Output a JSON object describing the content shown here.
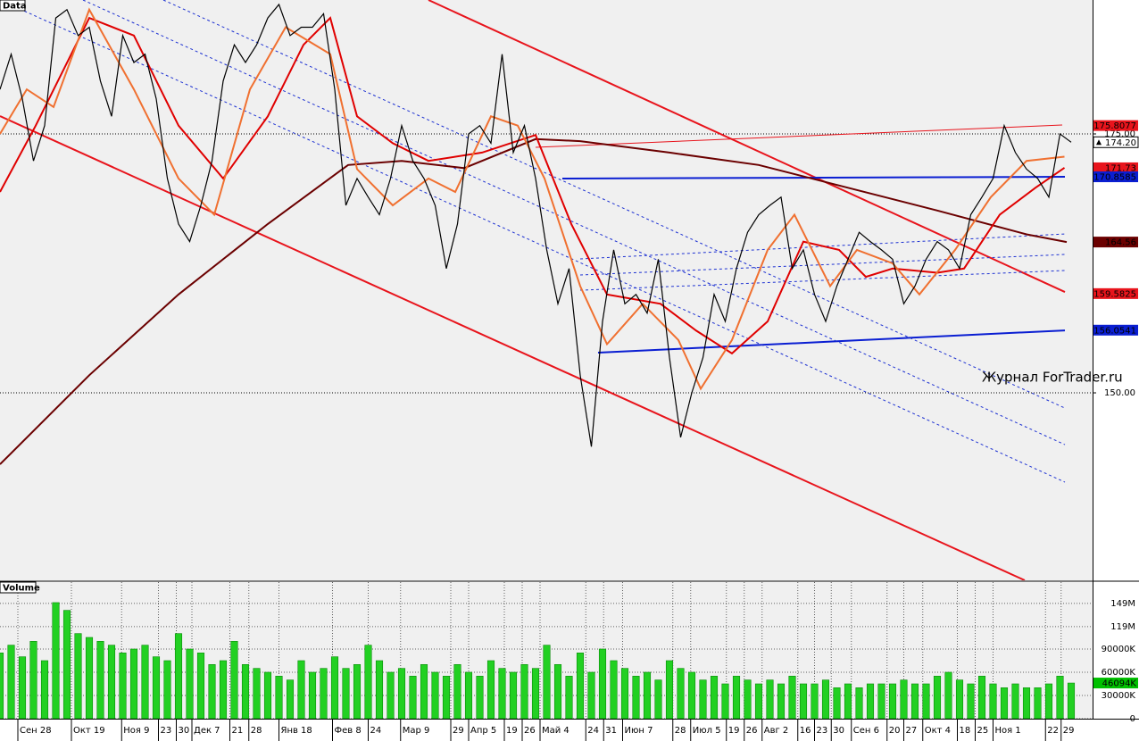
{
  "chart_data": [
    {
      "type": "line",
      "label": "Data",
      "watermark": "Журнал ForTrader.ru",
      "color": "#000000",
      "xlim": [
        0,
        97.92
      ],
      "ylim": [
        131.9,
        187.93
      ],
      "yticks": [
        {
          "value": 150,
          "label": "150.00"
        },
        {
          "value": 175,
          "label": "175.00"
        }
      ],
      "xticks": [
        {
          "value": 1.6,
          "label": "Сен 28"
        },
        {
          "value": 6.4,
          "label": "Окт 19"
        },
        {
          "value": 10.9,
          "label": "Ноя 9"
        },
        {
          "value": 14.2,
          "label": "23"
        },
        {
          "value": 15.8,
          "label": "30"
        },
        {
          "value": 17.2,
          "label": "Дек 7"
        },
        {
          "value": 20.6,
          "label": "21"
        },
        {
          "value": 22.3,
          "label": "28"
        },
        {
          "value": 25.0,
          "label": "Янв 18"
        },
        {
          "value": 29.8,
          "label": "Фев 8"
        },
        {
          "value": 33.0,
          "label": "24"
        },
        {
          "value": 35.9,
          "label": "Мар 9"
        },
        {
          "value": 40.4,
          "label": "29"
        },
        {
          "value": 42.0,
          "label": "Апр 5"
        },
        {
          "value": 45.2,
          "label": "19"
        },
        {
          "value": 46.8,
          "label": "26"
        },
        {
          "value": 48.4,
          "label": "Май 4"
        },
        {
          "value": 52.5,
          "label": "24"
        },
        {
          "value": 54.1,
          "label": "31"
        },
        {
          "value": 55.8,
          "label": "Июн 7"
        },
        {
          "value": 60.3,
          "label": "28"
        },
        {
          "value": 61.9,
          "label": "Июл 5"
        },
        {
          "value": 65.1,
          "label": "19"
        },
        {
          "value": 66.7,
          "label": "26"
        },
        {
          "value": 68.3,
          "label": "Авг 2"
        },
        {
          "value": 71.5,
          "label": "16"
        },
        {
          "value": 73.0,
          "label": "23"
        },
        {
          "value": 74.5,
          "label": "30"
        },
        {
          "value": 76.3,
          "label": "Сен 6"
        },
        {
          "value": 79.5,
          "label": "20"
        },
        {
          "value": 81.0,
          "label": "27"
        },
        {
          "value": 82.7,
          "label": "Окт 4"
        },
        {
          "value": 85.8,
          "label": "18"
        },
        {
          "value": 87.4,
          "label": "25"
        },
        {
          "value": 89.0,
          "label": "Ноя 1"
        },
        {
          "value": 93.7,
          "label": "22"
        },
        {
          "value": 95.1,
          "label": "29"
        }
      ],
      "values": [
        179.3,
        182.7,
        178.4,
        172.4,
        175.8,
        186.2,
        187,
        184.5,
        185.3,
        180.1,
        176.7,
        184.5,
        181.9,
        182.7,
        178.4,
        170.7,
        166.3,
        164.6,
        168.1,
        172.4,
        180.1,
        183.6,
        181.9,
        183.6,
        186.2,
        187.5,
        184.5,
        185.3,
        185.3,
        186.6,
        179.3,
        168.1,
        170.7,
        168.9,
        167.2,
        170.7,
        175.8,
        172.4,
        170.7,
        168.1,
        162.0,
        166.3,
        175.0,
        175.8,
        174.1,
        182.7,
        173.2,
        175.8,
        170.7,
        163.8,
        158.6,
        162.0,
        151.7,
        144.8,
        156.9,
        163.8,
        158.6,
        159.5,
        157.7,
        162.9,
        153.4,
        145.7,
        150.0,
        153.4,
        159.5,
        156.9,
        162.0,
        165.5,
        167.2,
        168.1,
        168.9,
        162.0,
        163.8,
        159.5,
        156.9,
        160.3,
        162.9,
        165.5,
        164.6,
        163.8,
        162.9,
        158.6,
        160.3,
        162.9,
        164.6,
        163.8,
        162.0,
        167.2,
        168.9,
        170.7,
        175.8,
        173.2,
        171.6,
        170.7,
        168.9,
        175.0,
        174.2
      ],
      "moving_averages": [
        {
          "color": "#6b0000",
          "x": [
            0,
            8,
            16,
            24,
            31.2,
            36,
            41.6,
            48,
            52,
            60,
            68,
            76,
            84,
            92,
            95.6
          ],
          "values": [
            143.1,
            151.7,
            159.5,
            166.3,
            172.0,
            172.4,
            171.7,
            174.5,
            174.3,
            173.2,
            172.0,
            169.8,
            167.6,
            165.3,
            164.56
          ]
        },
        {
          "color": "#e00000",
          "x": [
            0,
            3.2,
            8,
            12,
            16,
            20,
            24,
            27.2,
            29.6,
            32,
            35.2,
            38.4,
            43.2,
            48,
            51.2,
            54.4,
            59.2,
            62.4,
            65.6,
            68.8,
            72,
            75.2,
            77.6,
            80,
            84,
            86.4,
            89.6,
            92.8,
            95.4
          ],
          "values": [
            169.4,
            175.8,
            186.2,
            184.5,
            175.8,
            170.7,
            176.7,
            183.6,
            186.2,
            176.7,
            174.1,
            172.4,
            173.2,
            174.9,
            166.3,
            159.5,
            158.6,
            156.0,
            153.8,
            156.9,
            164.6,
            163.8,
            161.2,
            162.0,
            161.6,
            162.0,
            167.2,
            169.8,
            171.73
          ]
        },
        {
          "color": "#f07030",
          "x": [
            0,
            2.4,
            4.8,
            8,
            12,
            16,
            19.2,
            22.4,
            25.6,
            29.6,
            32,
            35.2,
            38.4,
            40.8,
            44,
            46.4,
            48.8,
            52,
            54.4,
            57.6,
            60.8,
            62.8,
            65.6,
            68.8,
            71.2,
            74.4,
            76.8,
            80,
            82.4,
            85.6,
            88.8,
            92,
            95.4
          ],
          "values": [
            175,
            179.3,
            177.6,
            187,
            179.3,
            170.7,
            167.2,
            179.3,
            185.3,
            182.7,
            171.6,
            168.1,
            170.7,
            169.4,
            176.7,
            175.8,
            170.7,
            160.3,
            154.7,
            158.6,
            155.1,
            150.4,
            155.1,
            163.8,
            167.2,
            160.3,
            163.8,
            162.5,
            159.5,
            163.8,
            168.9,
            172.4,
            172.8
          ]
        }
      ],
      "trend_lines": [
        {
          "color": "#e8141c",
          "width": 2,
          "dash": false,
          "x": [
            38.4,
            95.44
          ],
          "y": [
            187.93,
            159.74
          ]
        },
        {
          "color": "#e8141c",
          "width": 2,
          "dash": false,
          "x": [
            0,
            91.84
          ],
          "y": [
            176.72,
            131.9
          ]
        },
        {
          "color": "#e8141c",
          "width": 1,
          "dash": false,
          "x": [
            48,
            95.2
          ],
          "y": [
            173.71,
            175.86
          ]
        },
        {
          "color": "#0a1ed2",
          "width": 2,
          "dash": false,
          "x": [
            50.4,
            95.44
          ],
          "y": [
            170.69,
            170.86
          ]
        },
        {
          "color": "#0a1ed2",
          "width": 2,
          "dash": false,
          "x": [
            53.6,
            95.44
          ],
          "y": [
            153.88,
            156.03
          ]
        },
        {
          "color": "#1e32d2",
          "width": 1,
          "dash": true,
          "x": [
            14.64,
            95.44
          ],
          "y": [
            187.93,
            148.53
          ]
        },
        {
          "color": "#1e32d2",
          "width": 1,
          "dash": true,
          "x": [
            7.44,
            95.44
          ],
          "y": [
            187.93,
            145.0
          ]
        },
        {
          "color": "#1e32d2",
          "width": 1,
          "dash": true,
          "x": [
            0,
            95.44
          ],
          "y": [
            187.93,
            141.38
          ]
        },
        {
          "color": "#1e32d2",
          "width": 1,
          "dash": true,
          "x": [
            52,
            95.44
          ],
          "y": [
            162.93,
            165.34
          ]
        },
        {
          "color": "#1e32d2",
          "width": 1,
          "dash": true,
          "x": [
            52,
            95.44
          ],
          "y": [
            161.38,
            163.36
          ]
        },
        {
          "color": "#1e32d2",
          "width": 1,
          "dash": true,
          "x": [
            52,
            95.44
          ],
          "y": [
            159.91,
            161.81
          ]
        }
      ],
      "price_labels": [
        {
          "value": 175.8077,
          "label": "175.8077",
          "background": "#e8141c",
          "text_color": "#ffffff"
        },
        {
          "value": 174.2,
          "label": "174.20",
          "background": "#ffffff",
          "text_color": "#000000"
        },
        {
          "value": 171.73,
          "label": "171.73",
          "background": "#e8141c",
          "text_color": "#ffffff"
        },
        {
          "value": 170.8585,
          "label": "170.8585",
          "background": "#0a1ed2",
          "text_color": "#ffffff"
        },
        {
          "value": 164.56,
          "label": "164.56",
          "background": "#6b0000",
          "text_color": "#ffffff"
        },
        {
          "value": 159.5825,
          "label": "159.5825",
          "background": "#e8141c",
          "text_color": "#ffffff"
        },
        {
          "value": 156.0541,
          "label": "156.0541",
          "background": "#0a1ed2",
          "text_color": "#ffffff"
        }
      ]
    },
    {
      "type": "bar",
      "label": "Volume",
      "color": "#22d022",
      "ylim": [
        0,
        176.5
      ],
      "yticks": [
        {
          "value": 149,
          "label": "149M"
        },
        {
          "value": 119,
          "label": "119M"
        },
        {
          "value": 90,
          "label": "90000K"
        },
        {
          "value": 60,
          "label": "60000K"
        },
        {
          "value": 30,
          "label": "30000K"
        },
        0
      ],
      "value_label": {
        "value": 46.094,
        "label": "46094K",
        "background": "#00c000"
      },
      "values": [
        85,
        95,
        80,
        100,
        75,
        150,
        140,
        110,
        105,
        100,
        95,
        85,
        90,
        95,
        80,
        75,
        110,
        90,
        85,
        70,
        75,
        100,
        70,
        65,
        60,
        55,
        50,
        75,
        60,
        65,
        80,
        65,
        70,
        95,
        75,
        60,
        65,
        55,
        70,
        60,
        55,
        70,
        60,
        55,
        75,
        65,
        60,
        70,
        65,
        95,
        70,
        55,
        85,
        60,
        90,
        75,
        65,
        55,
        60,
        50,
        75,
        65,
        60,
        50,
        55,
        45,
        55,
        50,
        45,
        50,
        45,
        55,
        45,
        45,
        50,
        40,
        45,
        40,
        45,
        45,
        45,
        50,
        45,
        45,
        55,
        60,
        50,
        45,
        55,
        45,
        40,
        45,
        40,
        40,
        45,
        55,
        46.094
      ]
    }
  ]
}
